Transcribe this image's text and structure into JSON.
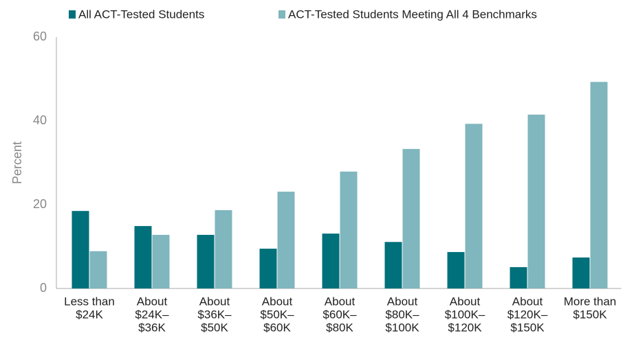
{
  "chart_data": {
    "type": "bar",
    "y_label": "Percent",
    "categories": [
      [
        "Less than",
        "$24K"
      ],
      [
        "About",
        "$24K–",
        "$36K"
      ],
      [
        "About",
        "$36K–",
        "$50K"
      ],
      [
        "About",
        "$50K–",
        "$60K"
      ],
      [
        "About",
        "$60K–",
        "$80K"
      ],
      [
        "About",
        "$80K–",
        "$100K"
      ],
      [
        "About",
        "$100K–",
        "$120K"
      ],
      [
        "About",
        "$120K–",
        "$150K"
      ],
      [
        "More than",
        "$150K"
      ]
    ],
    "series": [
      {
        "name": "All ACT-Tested Students",
        "color": "#00707a",
        "values": [
          18.5,
          14.9,
          12.8,
          9.5,
          13.1,
          11.1,
          8.7,
          5.1,
          7.4
        ]
      },
      {
        "name": "ACT-Tested Students Meeting All 4 Benchmarks",
        "color": "#80b6bd",
        "values": [
          8.9,
          12.8,
          18.7,
          23.1,
          27.9,
          33.3,
          39.3,
          41.5,
          49.3
        ]
      }
    ],
    "ylim": [
      0,
      60
    ],
    "yticks": [
      0,
      20,
      40,
      60
    ],
    "grid": false,
    "legend": "top"
  }
}
